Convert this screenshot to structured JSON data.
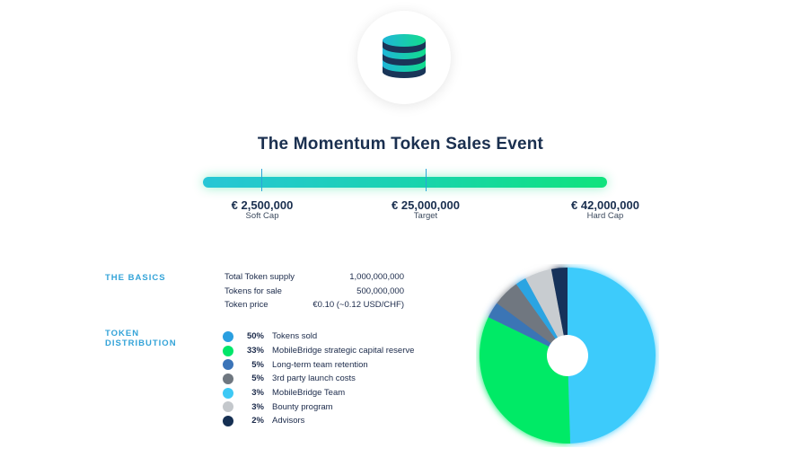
{
  "logo": {
    "icon": "coin-stack-icon"
  },
  "title": "The Momentum Token Sales Event",
  "caps": [
    {
      "amount": "€ 2,500,000",
      "label": "Soft Cap"
    },
    {
      "amount": "€ 25,000,000",
      "label": "Target"
    },
    {
      "amount": "€ 42,000,000",
      "label": "Hard Cap"
    }
  ],
  "basics": {
    "heading": "THE BASICS",
    "rows": [
      {
        "label": "Total Token supply",
        "value": "1,000,000,000"
      },
      {
        "label": "Tokens for sale",
        "value": "500,000,000"
      },
      {
        "label": "Token price",
        "value": "€0.10 (~0.12 USD/CHF)"
      }
    ]
  },
  "distribution": {
    "heading_line1": "TOKEN",
    "heading_line2": "DISTRIBUTION",
    "items": [
      {
        "pct": "50%",
        "label": "Tokens sold",
        "color": "#2a9fe0"
      },
      {
        "pct": "33%",
        "label": "MobileBridge strategic capital reserve",
        "color": "#00e66a"
      },
      {
        "pct": "5%",
        "label": "Long-term team retention",
        "color": "#3b74b8"
      },
      {
        "pct": "5%",
        "label": "3rd party launch costs",
        "color": "#6f7780"
      },
      {
        "pct": "3%",
        "label": "MobileBridge Team",
        "color": "#3ec9f5"
      },
      {
        "pct": "3%",
        "label": "Bounty program",
        "color": "#c4c8cc"
      },
      {
        "pct": "2%",
        "label": "Advisors",
        "color": "#152f52"
      }
    ]
  },
  "chart_data": {
    "type": "pie",
    "categories": [
      "Tokens sold",
      "MobileBridge strategic capital reserve",
      "Long-term team retention",
      "3rd party launch costs",
      "MobileBridge Team",
      "Bounty program",
      "Advisors"
    ],
    "values": [
      50,
      33,
      5,
      5,
      3,
      3,
      2
    ],
    "colors": [
      "#3ccbfb",
      "#00ea66",
      "#c8ccd0",
      "#6f7780",
      "#15325a",
      "#3a74b5",
      "#2aa4e2"
    ],
    "slice_order": [
      0,
      1,
      5,
      3,
      6,
      2,
      4
    ],
    "donut_hole": true
  }
}
